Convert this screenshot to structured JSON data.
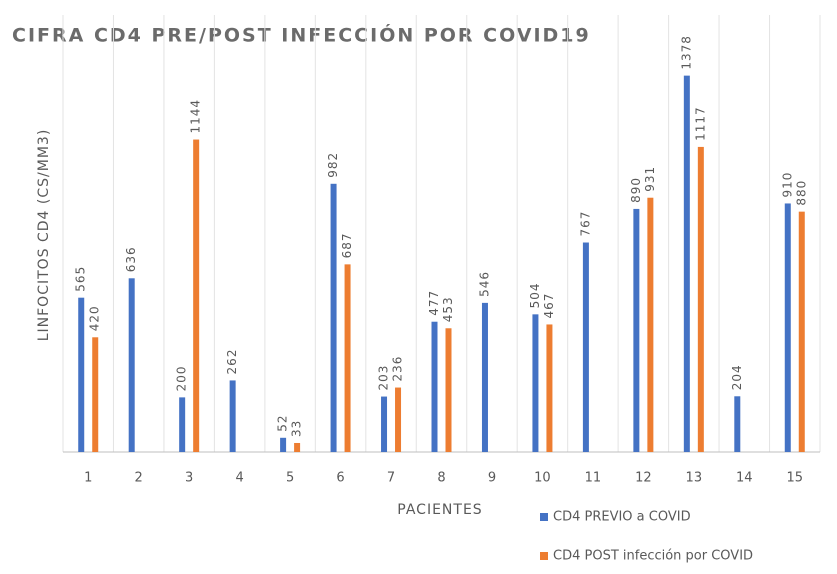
{
  "chart_data": {
    "type": "bar",
    "title": "CIFRA CD4 PRE/POST INFECCIÓN POR COVID19",
    "x_label": "PACIENTES",
    "y_label": "LINFOCITOS CD4 (CS/MM3)",
    "categories": [
      "1",
      "2",
      "3",
      "4",
      "5",
      "6",
      "7",
      "8",
      "9",
      "10",
      "11",
      "12",
      "13",
      "14",
      "15"
    ],
    "series": [
      {
        "name": "CD4 PREVIO a COVID",
        "color": "#4472c4",
        "values": [
          565,
          636,
          200,
          262,
          52,
          982,
          203,
          477,
          546,
          504,
          767,
          890,
          1378,
          204,
          910
        ]
      },
      {
        "name": "CD4 POST infección por COVID",
        "color": "#ed7d31",
        "values": [
          420,
          null,
          1144,
          null,
          33,
          687,
          236,
          453,
          null,
          467,
          null,
          931,
          1117,
          null,
          880
        ]
      }
    ],
    "ylim": [
      0,
      1600
    ],
    "grid": true
  }
}
